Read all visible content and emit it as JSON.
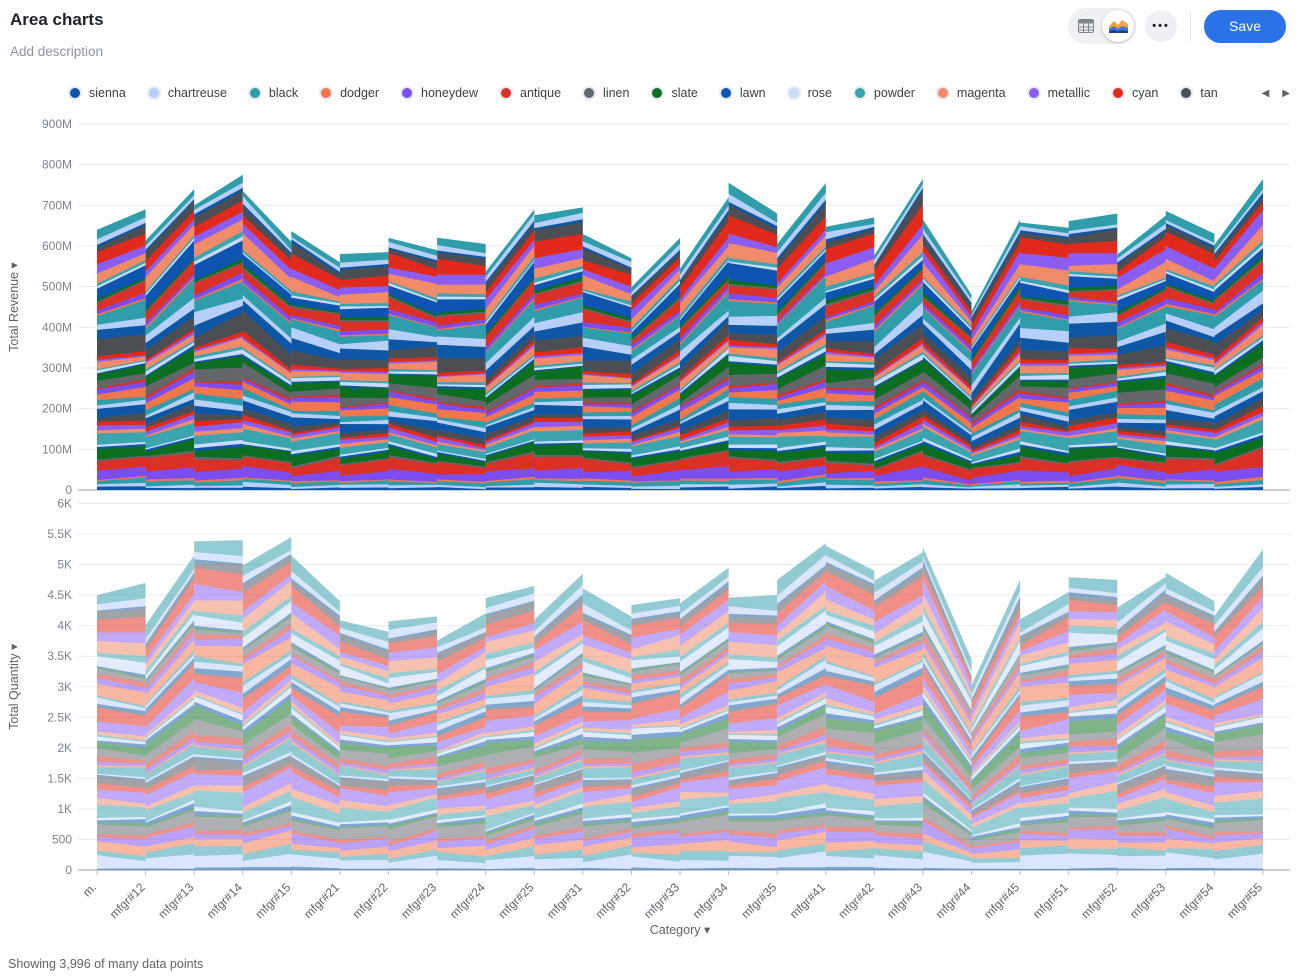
{
  "header": {
    "title": "Area charts",
    "description_placeholder": "Add description",
    "save_label": "Save",
    "view_toggle": {
      "options": [
        "table",
        "chart"
      ],
      "selected": "chart"
    },
    "more_icon": "•••"
  },
  "legend": {
    "position": "top",
    "prev_icon": "◀",
    "next_icon": "▶",
    "items": [
      {
        "name": "sienna",
        "color": "#0e57a7"
      },
      {
        "name": "chartreuse",
        "color": "#b7d0fa"
      },
      {
        "name": "black",
        "color": "#2f9daa"
      },
      {
        "name": "dodger",
        "color": "#f0774c"
      },
      {
        "name": "honeydew",
        "color": "#7c4ef2"
      },
      {
        "name": "antique",
        "color": "#da3025"
      },
      {
        "name": "linen",
        "color": "#63676c"
      },
      {
        "name": "slate",
        "color": "#0b6e20"
      },
      {
        "name": "lawn",
        "color": "#0d55b0"
      },
      {
        "name": "rose",
        "color": "#c9dcfc"
      },
      {
        "name": "powder",
        "color": "#3aa5af"
      },
      {
        "name": "magenta",
        "color": "#f18a69"
      },
      {
        "name": "metallic",
        "color": "#8a5ef5"
      },
      {
        "name": "cyan",
        "color": "#e12a1b"
      },
      {
        "name": "tan",
        "color": "#4b4f54"
      }
    ]
  },
  "chart_data": [
    {
      "type": "area",
      "stacked": true,
      "ylabel": "Total Revenue",
      "xlabel": "Category",
      "sort_arrow": "▾",
      "legend_position": "top",
      "grid": true,
      "categories": [
        "m.",
        "mfgr#12",
        "mfgr#13",
        "mfgr#14",
        "mfgr#15",
        "mfgr#21",
        "mfgr#22",
        "mfgr#23",
        "mfgr#24",
        "mfgr#25",
        "mfgr#31",
        "mfgr#32",
        "mfgr#33",
        "mfgr#34",
        "mfgr#35",
        "mfgr#41",
        "mfgr#42",
        "mfgr#43",
        "mfgr#44",
        "mfgr#45",
        "mfgr#51",
        "mfgr#52",
        "mfgr#53",
        "mfgr#54",
        "mfgr#55"
      ],
      "y_ticks": [
        "900M",
        "800M",
        "700M",
        "600M",
        "500M",
        "400M",
        "300M",
        "200M",
        "100M",
        "0"
      ],
      "ymax": 900,
      "unit": "M",
      "ylim": [
        0,
        900
      ],
      "estimated_totals": [
        640,
        690,
        740,
        775,
        610,
        560,
        585,
        590,
        605,
        690,
        695,
        570,
        620,
        720,
        680,
        755,
        670,
        765,
        480,
        665,
        645,
        680,
        675,
        630,
        765
      ],
      "approx_series_count": 48,
      "series_values_labeled": false
    },
    {
      "type": "area",
      "stacked": true,
      "ylabel": "Total Quantity",
      "xlabel": "Category",
      "sort_arrow": "▾",
      "legend_position": "top",
      "grid": true,
      "categories": [
        "m.",
        "mfgr#12",
        "mfgr#13",
        "mfgr#14",
        "mfgr#15",
        "mfgr#21",
        "mfgr#22",
        "mfgr#23",
        "mfgr#24",
        "mfgr#25",
        "mfgr#31",
        "mfgr#32",
        "mfgr#33",
        "mfgr#34",
        "mfgr#35",
        "mfgr#41",
        "mfgr#42",
        "mfgr#43",
        "mfgr#44",
        "mfgr#45",
        "mfgr#51",
        "mfgr#52",
        "mfgr#53",
        "mfgr#54",
        "mfgr#55"
      ],
      "y_ticks": [
        "6K",
        "5.5K",
        "5K",
        "4.5K",
        "4K",
        "3.5K",
        "3K",
        "2.5K",
        "2K",
        "1.5K",
        "1K",
        "500",
        "0"
      ],
      "ymax": 6000,
      "unit": "",
      "ylim": [
        0,
        6000
      ],
      "estimated_totals": [
        4500,
        4700,
        5150,
        5400,
        5450,
        4400,
        3900,
        4150,
        4200,
        4650,
        4850,
        4150,
        4450,
        4950,
        4500,
        5350,
        4900,
        5200,
        3450,
        4750,
        4550,
        4750,
        4800,
        4400,
        5250
      ],
      "approx_series_count": 48,
      "series_values_labeled": false
    }
  ],
  "footer": {
    "status": "Showing 3,996 of many data points"
  }
}
